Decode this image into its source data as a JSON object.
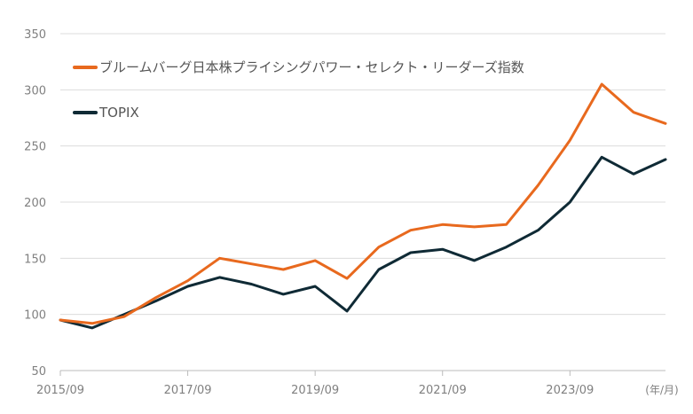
{
  "chart_data": {
    "type": "line",
    "title": "",
    "xlabel": "",
    "ylabel": "",
    "x_unit_label": "(年/月)",
    "ylim": [
      50,
      350
    ],
    "yticks": [
      50,
      100,
      150,
      200,
      250,
      300,
      350
    ],
    "xticks": [
      "2015/09",
      "2017/09",
      "2019/09",
      "2021/09",
      "2023/09"
    ],
    "grid": true,
    "legend_position": "top-left",
    "colors": {
      "series1": "#e8691e",
      "series2": "#0f2a35",
      "grid": "#dcdcdc"
    },
    "x": [
      "2015/09",
      "2016/03",
      "2016/09",
      "2017/03",
      "2017/09",
      "2018/03",
      "2018/09",
      "2019/03",
      "2019/09",
      "2020/03",
      "2020/09",
      "2021/03",
      "2021/09",
      "2022/03",
      "2022/09",
      "2023/03",
      "2023/09",
      "2024/03",
      "2024/09",
      "2025/03"
    ],
    "series": [
      {
        "name": "ブルームバーグ日本株プライシングパワー・セレクト・リーダーズ指数",
        "values": [
          95,
          92,
          98,
          115,
          130,
          150,
          145,
          140,
          148,
          132,
          160,
          175,
          180,
          178,
          180,
          215,
          255,
          305,
          280,
          270
        ]
      },
      {
        "name": "TOPIX",
        "values": [
          95,
          88,
          100,
          112,
          125,
          133,
          127,
          118,
          125,
          103,
          140,
          155,
          158,
          148,
          160,
          175,
          200,
          240,
          225,
          238
        ]
      }
    ]
  }
}
